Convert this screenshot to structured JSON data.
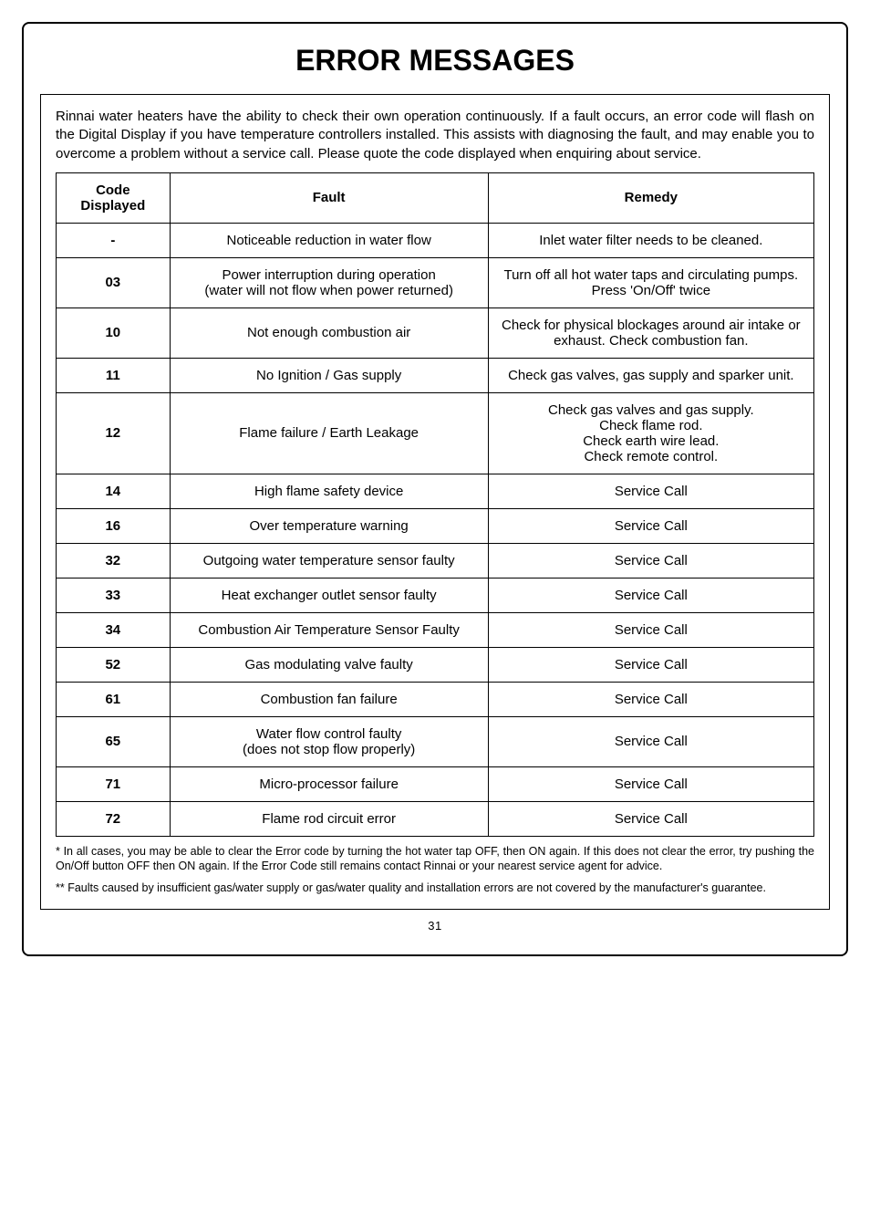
{
  "title": "ERROR MESSAGES",
  "intro": "Rinnai water heaters have the ability to check their own operation continuously. If a fault occurs, an error code will flash on the Digital Display if you have temperature controllers installed. This assists with diagnosing the fault, and may enable you to overcome a problem without a service call. Please quote the code displayed when enquiring about service.",
  "table": {
    "headers": {
      "code": "Code Displayed",
      "fault": "Fault",
      "remedy": "Remedy"
    },
    "rows": [
      {
        "code": "-",
        "fault": "Noticeable reduction in water flow",
        "remedy": "Inlet water filter needs to be cleaned."
      },
      {
        "code": "03",
        "fault": "Power interruption during operation\n(water will not flow when power returned)",
        "remedy": "Turn off all hot water taps and circulating pumps.\nPress 'On/Off' twice"
      },
      {
        "code": "10",
        "fault": "Not enough combustion air",
        "remedy": "Check for physical blockages around air intake or exhaust.  Check combustion fan."
      },
      {
        "code": "11",
        "fault": "No Ignition / Gas supply",
        "remedy": "Check gas valves, gas supply and sparker unit."
      },
      {
        "code": "12",
        "fault": "Flame failure / Earth Leakage",
        "remedy": "Check gas valves and gas supply.\nCheck flame rod.\nCheck earth wire lead.\nCheck remote control."
      },
      {
        "code": "14",
        "fault": "High flame safety device",
        "remedy": "Service Call"
      },
      {
        "code": "16",
        "fault": "Over temperature warning",
        "remedy": "Service Call"
      },
      {
        "code": "32",
        "fault": "Outgoing water temperature sensor faulty",
        "remedy": "Service Call"
      },
      {
        "code": "33",
        "fault": "Heat exchanger outlet sensor faulty",
        "remedy": "Service Call"
      },
      {
        "code": "34",
        "fault": "Combustion Air Temperature Sensor Faulty",
        "remedy": "Service Call"
      },
      {
        "code": "52",
        "fault": "Gas modulating valve faulty",
        "remedy": "Service Call"
      },
      {
        "code": "61",
        "fault": "Combustion fan failure",
        "remedy": "Service Call"
      },
      {
        "code": "65",
        "fault": "Water flow control faulty\n(does not stop flow properly)",
        "remedy": "Service Call"
      },
      {
        "code": "71",
        "fault": "Micro-processor failure",
        "remedy": "Service Call"
      },
      {
        "code": "72",
        "fault": "Flame rod circuit error",
        "remedy": "Service Call"
      }
    ]
  },
  "footnote1": "* In all cases, you may be able to clear the Error code by turning the hot water tap OFF, then ON again. If this does not clear the error, try pushing the On/Off button OFF then ON again. If the Error Code still remains contact Rinnai or your nearest service agent for advice.",
  "footnote2": "** Faults caused by insufficient gas/water supply or gas/water quality and installation errors are not covered by the manufacturer's guarantee.",
  "pageNumber": "31"
}
